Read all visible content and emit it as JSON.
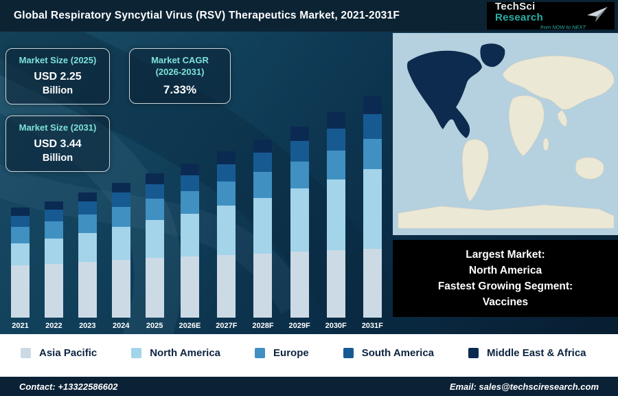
{
  "header": {
    "title": "Global Respiratory Syncytial Virus (RSV) Therapeutics Market, 2021-2031F",
    "logo": {
      "primary": "TechSci",
      "secondary": "Research",
      "tagline": "from NOW to NEXT"
    }
  },
  "cards": [
    {
      "heading": "Market Size (2025)",
      "value": "USD 2.25",
      "unit": "Billion"
    },
    {
      "heading_line1": "Market CAGR",
      "heading_line2": "(2026-2031)",
      "value": "7.33%"
    },
    {
      "heading": "Market Size (2031)",
      "value": "USD 3.44",
      "unit": "Billion"
    }
  ],
  "chart_data": {
    "type": "bar",
    "stacked": true,
    "title": "Global Respiratory Syncytial Virus (RSV) Therapeutics Market, 2021-2031F",
    "xlabel": "",
    "ylabel": "USD Billion (implied, axis unlabeled)",
    "ylim": [
      0,
      3.6
    ],
    "grid": false,
    "legend_position": "bottom",
    "categories": [
      "2021",
      "2022",
      "2023",
      "2024",
      "2025",
      "2026E",
      "2027F",
      "2028F",
      "2029F",
      "2030F",
      "2031F"
    ],
    "totals": [
      1.7,
      1.82,
      1.95,
      2.1,
      2.25,
      2.41,
      2.59,
      2.78,
      2.99,
      3.21,
      3.44
    ],
    "series": [
      {
        "name": "Asia Pacific",
        "color": "#ccdae5",
        "values": [
          0.82,
          0.84,
          0.87,
          0.9,
          0.93,
          0.95,
          0.98,
          1.0,
          1.03,
          1.05,
          1.07
        ]
      },
      {
        "name": "North America",
        "color": "#a3d4ea",
        "values": [
          0.34,
          0.39,
          0.45,
          0.52,
          0.59,
          0.67,
          0.77,
          0.87,
          0.98,
          1.1,
          1.24
        ]
      },
      {
        "name": "Europe",
        "color": "#4090c2",
        "values": [
          0.26,
          0.27,
          0.29,
          0.31,
          0.33,
          0.35,
          0.37,
          0.4,
          0.42,
          0.45,
          0.48
        ]
      },
      {
        "name": "South America",
        "color": "#175a92",
        "values": [
          0.17,
          0.18,
          0.2,
          0.22,
          0.23,
          0.25,
          0.27,
          0.3,
          0.32,
          0.35,
          0.38
        ]
      },
      {
        "name": "Middle East & Africa",
        "color": "#0b2a52",
        "values": [
          0.12,
          0.13,
          0.14,
          0.15,
          0.17,
          0.18,
          0.2,
          0.21,
          0.23,
          0.25,
          0.28
        ]
      }
    ]
  },
  "map": {
    "highlight_region": "North America",
    "ocean_color": "#b5d0de",
    "land_color": "#ece8d6",
    "highlight_color": "#0d2b4e"
  },
  "info_box": {
    "lines": [
      "Largest Market:",
      "North America",
      "Fastest Growing Segment:",
      "Vaccines"
    ]
  },
  "footer": {
    "contact": "Contact: +13322586602",
    "email": "Email: sales@techsciresearch.com"
  }
}
